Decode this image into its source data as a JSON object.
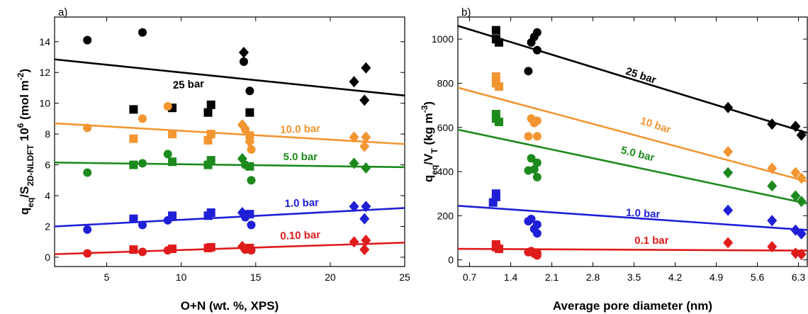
{
  "chart_data": [
    {
      "type": "scatter",
      "panel_label": "a)",
      "xlabel": "O+N (wt. %, XPS)",
      "ylabel_parts": [
        "q",
        "eq",
        "/S",
        "2D-NLDFT",
        " 10",
        "6",
        " (mol m",
        "-2",
        ")"
      ],
      "xlim": [
        1.5,
        25
      ],
      "ylim": [
        -0.6,
        15.6
      ],
      "xticks": [
        5,
        10,
        15,
        20,
        25
      ],
      "xtick_labels": [
        "5",
        "10",
        "15",
        "20",
        "25"
      ],
      "yticks": [
        0,
        2,
        4,
        6,
        8,
        10,
        12,
        14
      ],
      "ytick_labels": [
        "0",
        "2",
        "4",
        "6",
        "8",
        "10",
        "12",
        "14"
      ],
      "series": [
        {
          "name": "25 bar",
          "color": "#000000",
          "label_at": [
            10.5,
            11.0
          ],
          "label_rotation": -3,
          "fit": {
            "x": [
              1.5,
              25
            ],
            "y": [
              12.85,
              10.5
            ]
          },
          "points": [
            {
              "x": 3.7,
              "y": 14.1,
              "m": "circle"
            },
            {
              "x": 7.4,
              "y": 14.6,
              "m": "circle"
            },
            {
              "x": 6.8,
              "y": 9.6,
              "m": "square"
            },
            {
              "x": 9.4,
              "y": 9.7,
              "m": "square"
            },
            {
              "x": 11.8,
              "y": 9.4,
              "m": "square"
            },
            {
              "x": 12.0,
              "y": 9.9,
              "m": "square"
            },
            {
              "x": 14.2,
              "y": 13.3,
              "m": "diamond"
            },
            {
              "x": 14.2,
              "y": 12.7,
              "m": "circle"
            },
            {
              "x": 14.6,
              "y": 10.8,
              "m": "circle"
            },
            {
              "x": 14.6,
              "y": 9.4,
              "m": "square"
            },
            {
              "x": 21.6,
              "y": 11.4,
              "m": "diamond"
            },
            {
              "x": 22.4,
              "y": 12.3,
              "m": "diamond"
            },
            {
              "x": 22.3,
              "y": 10.2,
              "m": "diamond"
            }
          ]
        },
        {
          "name": "10.0 bar",
          "color": "#f39530",
          "label_at": [
            18.0,
            8.1
          ],
          "label_rotation": -2,
          "fit": {
            "x": [
              1.5,
              25
            ],
            "y": [
              8.7,
              7.35
            ]
          },
          "points": [
            {
              "x": 3.7,
              "y": 8.4,
              "m": "circle"
            },
            {
              "x": 7.4,
              "y": 9.0,
              "m": "circle"
            },
            {
              "x": 9.1,
              "y": 9.8,
              "m": "circle"
            },
            {
              "x": 6.8,
              "y": 7.7,
              "m": "square"
            },
            {
              "x": 9.4,
              "y": 8.0,
              "m": "square"
            },
            {
              "x": 11.8,
              "y": 7.6,
              "m": "square"
            },
            {
              "x": 12.0,
              "y": 8.0,
              "m": "square"
            },
            {
              "x": 14.1,
              "y": 8.6,
              "m": "diamond"
            },
            {
              "x": 14.3,
              "y": 8.3,
              "m": "circle"
            },
            {
              "x": 14.6,
              "y": 7.9,
              "m": "square"
            },
            {
              "x": 14.6,
              "y": 7.5,
              "m": "diamond"
            },
            {
              "x": 14.7,
              "y": 7.0,
              "m": "circle"
            },
            {
              "x": 21.6,
              "y": 7.8,
              "m": "diamond"
            },
            {
              "x": 22.4,
              "y": 7.8,
              "m": "diamond"
            },
            {
              "x": 22.3,
              "y": 7.2,
              "m": "diamond"
            }
          ]
        },
        {
          "name": "5.0 bar",
          "color": "#1d8a1d",
          "label_at": [
            18.0,
            6.3
          ],
          "label_rotation": 0,
          "fit": {
            "x": [
              1.5,
              25
            ],
            "y": [
              6.15,
              5.85
            ]
          },
          "points": [
            {
              "x": 3.7,
              "y": 5.5,
              "m": "circle"
            },
            {
              "x": 7.4,
              "y": 6.1,
              "m": "circle"
            },
            {
              "x": 9.1,
              "y": 6.7,
              "m": "circle"
            },
            {
              "x": 6.8,
              "y": 6.0,
              "m": "square"
            },
            {
              "x": 9.4,
              "y": 6.2,
              "m": "square"
            },
            {
              "x": 11.8,
              "y": 6.0,
              "m": "square"
            },
            {
              "x": 12.0,
              "y": 6.3,
              "m": "square"
            },
            {
              "x": 14.1,
              "y": 6.4,
              "m": "diamond"
            },
            {
              "x": 14.3,
              "y": 6.0,
              "m": "circle"
            },
            {
              "x": 14.6,
              "y": 5.9,
              "m": "square"
            },
            {
              "x": 14.7,
              "y": 5.0,
              "m": "circle"
            },
            {
              "x": 21.6,
              "y": 6.1,
              "m": "diamond"
            },
            {
              "x": 22.4,
              "y": 5.8,
              "m": "diamond"
            }
          ]
        },
        {
          "name": "1.0 bar",
          "color": "#1f1fd6",
          "label_at": [
            18.1,
            3.3
          ],
          "label_rotation": -2,
          "fit": {
            "x": [
              1.5,
              25
            ],
            "y": [
              2.0,
              3.2
            ]
          },
          "points": [
            {
              "x": 3.7,
              "y": 1.8,
              "m": "circle"
            },
            {
              "x": 7.4,
              "y": 2.1,
              "m": "circle"
            },
            {
              "x": 9.1,
              "y": 2.4,
              "m": "circle"
            },
            {
              "x": 6.8,
              "y": 2.5,
              "m": "square"
            },
            {
              "x": 9.4,
              "y": 2.7,
              "m": "square"
            },
            {
              "x": 11.8,
              "y": 2.7,
              "m": "square"
            },
            {
              "x": 12.0,
              "y": 2.9,
              "m": "square"
            },
            {
              "x": 14.1,
              "y": 2.9,
              "m": "diamond"
            },
            {
              "x": 14.3,
              "y": 2.6,
              "m": "circle"
            },
            {
              "x": 14.6,
              "y": 2.8,
              "m": "square"
            },
            {
              "x": 14.7,
              "y": 2.1,
              "m": "circle"
            },
            {
              "x": 21.6,
              "y": 3.3,
              "m": "diamond"
            },
            {
              "x": 22.4,
              "y": 3.3,
              "m": "diamond"
            },
            {
              "x": 22.3,
              "y": 2.5,
              "m": "diamond"
            }
          ]
        },
        {
          "name": "0.10 bar",
          "color": "#e01b1b",
          "label_at": [
            18.0,
            1.2
          ],
          "label_rotation": -2,
          "fit": {
            "x": [
              1.5,
              25
            ],
            "y": [
              0.2,
              0.95
            ]
          },
          "points": [
            {
              "x": 3.7,
              "y": 0.25,
              "m": "circle"
            },
            {
              "x": 7.4,
              "y": 0.35,
              "m": "circle"
            },
            {
              "x": 9.1,
              "y": 0.45,
              "m": "circle"
            },
            {
              "x": 6.8,
              "y": 0.5,
              "m": "square"
            },
            {
              "x": 9.4,
              "y": 0.55,
              "m": "square"
            },
            {
              "x": 11.8,
              "y": 0.6,
              "m": "square"
            },
            {
              "x": 12.0,
              "y": 0.65,
              "m": "square"
            },
            {
              "x": 14.1,
              "y": 0.7,
              "m": "diamond"
            },
            {
              "x": 14.3,
              "y": 0.5,
              "m": "circle"
            },
            {
              "x": 14.6,
              "y": 0.6,
              "m": "square"
            },
            {
              "x": 14.7,
              "y": 0.45,
              "m": "circle"
            },
            {
              "x": 21.6,
              "y": 1.0,
              "m": "diamond"
            },
            {
              "x": 22.4,
              "y": 1.1,
              "m": "diamond"
            },
            {
              "x": 22.3,
              "y": 0.5,
              "m": "diamond"
            }
          ]
        }
      ]
    },
    {
      "type": "scatter",
      "panel_label": "b)",
      "xlabel": "Average pore diameter (nm)",
      "ylabel_parts": [
        "q",
        "eq",
        "/V",
        "T",
        " (kg m",
        "-3",
        ")"
      ],
      "xlim": [
        0.5,
        6.45
      ],
      "ylim": [
        -30,
        1100
      ],
      "xticks": [
        0.7,
        1.4,
        2.1,
        2.8,
        3.5,
        4.2,
        4.9,
        5.6,
        6.3
      ],
      "xtick_labels": [
        "0.7",
        "1.4",
        "2.1",
        "2.8",
        "3.5",
        "4.2",
        "4.9",
        "5.6",
        "6.3"
      ],
      "yticks": [
        0,
        200,
        400,
        600,
        800,
        1000
      ],
      "ytick_labels": [
        "0",
        "200",
        "400",
        "600",
        "800",
        "1000"
      ],
      "series": [
        {
          "name": "25 bar",
          "color": "#000000",
          "label_at": [
            3.6,
            820
          ],
          "label_rotation": 18,
          "fit": {
            "x": [
              0.5,
              6.45
            ],
            "y": [
              1060,
              575
            ]
          },
          "points": [
            {
              "x": 1.15,
              "y": 1040,
              "m": "square"
            },
            {
              "x": 1.15,
              "y": 1000,
              "m": "square"
            },
            {
              "x": 1.2,
              "y": 985,
              "m": "square"
            },
            {
              "x": 1.7,
              "y": 855,
              "m": "circle"
            },
            {
              "x": 1.75,
              "y": 985,
              "m": "circle"
            },
            {
              "x": 1.8,
              "y": 1010,
              "m": "circle"
            },
            {
              "x": 1.85,
              "y": 1030,
              "m": "circle"
            },
            {
              "x": 1.85,
              "y": 950,
              "m": "circle"
            },
            {
              "x": 5.1,
              "y": 690,
              "m": "diamond"
            },
            {
              "x": 5.85,
              "y": 615,
              "m": "diamond"
            },
            {
              "x": 6.25,
              "y": 605,
              "m": "diamond"
            },
            {
              "x": 6.35,
              "y": 565,
              "m": "diamond"
            }
          ]
        },
        {
          "name": "10 bar",
          "color": "#f39530",
          "label_at": [
            3.85,
            595
          ],
          "label_rotation": 18,
          "fit": {
            "x": [
              0.5,
              6.45
            ],
            "y": [
              780,
              355
            ]
          },
          "points": [
            {
              "x": 1.15,
              "y": 830,
              "m": "square"
            },
            {
              "x": 1.15,
              "y": 800,
              "m": "square"
            },
            {
              "x": 1.2,
              "y": 785,
              "m": "square"
            },
            {
              "x": 1.7,
              "y": 560,
              "m": "circle"
            },
            {
              "x": 1.75,
              "y": 640,
              "m": "circle"
            },
            {
              "x": 1.8,
              "y": 620,
              "m": "circle"
            },
            {
              "x": 1.85,
              "y": 630,
              "m": "circle"
            },
            {
              "x": 1.85,
              "y": 560,
              "m": "circle"
            },
            {
              "x": 5.1,
              "y": 490,
              "m": "diamond"
            },
            {
              "x": 5.85,
              "y": 415,
              "m": "diamond"
            },
            {
              "x": 6.25,
              "y": 395,
              "m": "diamond"
            },
            {
              "x": 6.35,
              "y": 370,
              "m": "diamond"
            }
          ]
        },
        {
          "name": "5.0 bar",
          "color": "#1d8a1d",
          "label_at": [
            3.55,
            465
          ],
          "label_rotation": 14,
          "fit": {
            "x": [
              0.5,
              6.45
            ],
            "y": [
              590,
              255
            ]
          },
          "points": [
            {
              "x": 1.15,
              "y": 660,
              "m": "square"
            },
            {
              "x": 1.15,
              "y": 640,
              "m": "square"
            },
            {
              "x": 1.2,
              "y": 625,
              "m": "square"
            },
            {
              "x": 1.7,
              "y": 405,
              "m": "circle"
            },
            {
              "x": 1.75,
              "y": 460,
              "m": "circle"
            },
            {
              "x": 1.8,
              "y": 410,
              "m": "circle"
            },
            {
              "x": 1.85,
              "y": 440,
              "m": "circle"
            },
            {
              "x": 1.85,
              "y": 375,
              "m": "circle"
            },
            {
              "x": 5.1,
              "y": 395,
              "m": "diamond"
            },
            {
              "x": 5.85,
              "y": 335,
              "m": "diamond"
            },
            {
              "x": 6.25,
              "y": 290,
              "m": "diamond"
            },
            {
              "x": 6.35,
              "y": 265,
              "m": "diamond"
            }
          ]
        },
        {
          "name": "1.0 bar",
          "color": "#1f1fd6",
          "label_at": [
            3.65,
            195
          ],
          "label_rotation": 3,
          "fit": {
            "x": [
              0.5,
              6.45
            ],
            "y": [
              245,
              135
            ]
          },
          "points": [
            {
              "x": 1.15,
              "y": 300,
              "m": "square"
            },
            {
              "x": 1.15,
              "y": 285,
              "m": "square"
            },
            {
              "x": 1.1,
              "y": 260,
              "m": "square"
            },
            {
              "x": 1.7,
              "y": 175,
              "m": "circle"
            },
            {
              "x": 1.75,
              "y": 185,
              "m": "circle"
            },
            {
              "x": 1.8,
              "y": 140,
              "m": "circle"
            },
            {
              "x": 1.85,
              "y": 160,
              "m": "circle"
            },
            {
              "x": 1.85,
              "y": 120,
              "m": "circle"
            },
            {
              "x": 5.1,
              "y": 225,
              "m": "diamond"
            },
            {
              "x": 5.85,
              "y": 178,
              "m": "diamond"
            },
            {
              "x": 6.25,
              "y": 135,
              "m": "diamond"
            },
            {
              "x": 6.35,
              "y": 118,
              "m": "diamond"
            }
          ]
        },
        {
          "name": "0.1 bar",
          "color": "#e01b1b",
          "label_at": [
            3.8,
            72
          ],
          "label_rotation": 0,
          "fit": {
            "x": [
              0.5,
              6.45
            ],
            "y": [
              50,
              42
            ]
          },
          "points": [
            {
              "x": 1.15,
              "y": 70,
              "m": "square"
            },
            {
              "x": 1.15,
              "y": 58,
              "m": "square"
            },
            {
              "x": 1.2,
              "y": 50,
              "m": "square"
            },
            {
              "x": 1.7,
              "y": 35,
              "m": "circle"
            },
            {
              "x": 1.75,
              "y": 40,
              "m": "circle"
            },
            {
              "x": 1.8,
              "y": 28,
              "m": "circle"
            },
            {
              "x": 1.85,
              "y": 32,
              "m": "circle"
            },
            {
              "x": 1.85,
              "y": 20,
              "m": "circle"
            },
            {
              "x": 5.1,
              "y": 78,
              "m": "diamond"
            },
            {
              "x": 5.85,
              "y": 60,
              "m": "diamond"
            },
            {
              "x": 6.25,
              "y": 30,
              "m": "diamond"
            },
            {
              "x": 6.35,
              "y": 25,
              "m": "diamond"
            }
          ]
        }
      ]
    }
  ]
}
